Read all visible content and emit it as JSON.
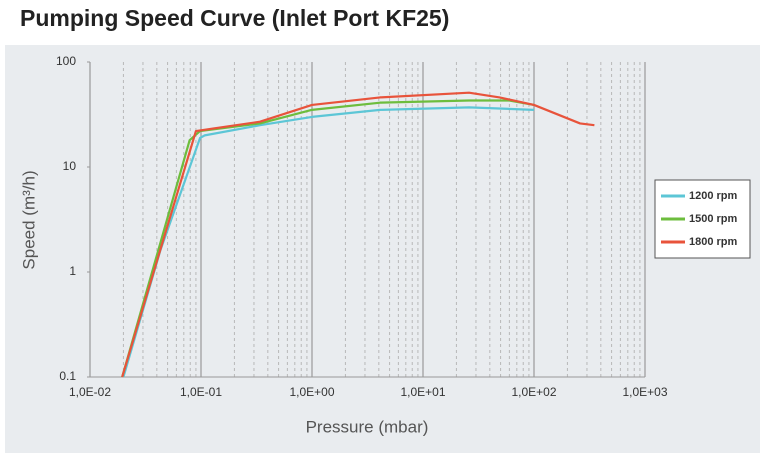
{
  "chart_data": {
    "type": "line",
    "title": "Pumping Speed Curve (Inlet Port KF25)",
    "x_label": "Pressure (mbar)",
    "y_label": "Speed (m³/h)",
    "xlog": true,
    "ylog": true,
    "grid": true,
    "minor_grid": true,
    "legend": "right",
    "xlim": [
      0.01,
      1000
    ],
    "ylim": [
      0.1,
      100
    ],
    "xticks": [
      {
        "value": 0.01,
        "label": "1,0E-02"
      },
      {
        "value": 0.1,
        "label": "1,0E-01"
      },
      {
        "value": 1,
        "label": "1,0E+00"
      },
      {
        "value": 10,
        "label": "1,0E+01"
      },
      {
        "value": 100,
        "label": "1,0E+02"
      },
      {
        "value": 1000,
        "label": "1,0E+03"
      }
    ],
    "yticks": [
      0.1,
      1,
      10,
      100
    ],
    "series": [
      {
        "name": "1200 rpm",
        "color": "#5cc6d6",
        "x": [
          0.02,
          0.043,
          0.098,
          0.108,
          0.34,
          1,
          4.1,
          26,
          100
        ],
        "values": [
          0.1,
          1.6,
          18.9,
          20,
          25,
          30,
          35,
          37,
          35
        ]
      },
      {
        "name": "1500 rpm",
        "color": "#6dbd3d",
        "x": [
          0.0195,
          0.079,
          0.098,
          0.34,
          1,
          4.1,
          26,
          60,
          100
        ],
        "values": [
          0.1,
          18,
          22,
          26,
          35,
          41,
          43,
          43,
          39
        ]
      },
      {
        "name": "1800 rpm",
        "color": "#e8533b",
        "x": [
          0.0195,
          0.09,
          0.34,
          1,
          4.1,
          26,
          49,
          100,
          260,
          350
        ],
        "values": [
          0.1,
          22,
          27,
          39,
          46,
          51,
          46,
          39,
          26,
          25
        ]
      }
    ]
  }
}
